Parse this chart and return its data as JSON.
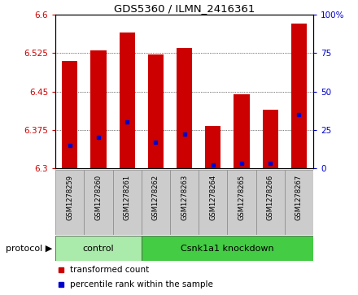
{
  "title": "GDS5360 / ILMN_2416361",
  "samples": [
    "GSM1278259",
    "GSM1278260",
    "GSM1278261",
    "GSM1278262",
    "GSM1278263",
    "GSM1278264",
    "GSM1278265",
    "GSM1278266",
    "GSM1278267"
  ],
  "transformed_counts": [
    6.51,
    6.53,
    6.565,
    6.522,
    6.535,
    6.382,
    6.445,
    6.415,
    6.583
  ],
  "percentile_ranks": [
    15,
    20,
    30,
    17,
    22,
    2,
    3,
    3,
    35
  ],
  "ylim": [
    6.3,
    6.6
  ],
  "yticks": [
    6.3,
    6.375,
    6.45,
    6.525,
    6.6
  ],
  "right_yticks": [
    0,
    25,
    50,
    75,
    100
  ],
  "bar_color": "#cc0000",
  "marker_color": "#0000cc",
  "bg_color": "#cccccc",
  "plot_bg": "#ffffff",
  "grid_color": "#000000",
  "protocol_groups": [
    {
      "label": "control",
      "start": 0,
      "end": 2,
      "color": "#aaeaaa"
    },
    {
      "label": "Csnk1a1 knockdown",
      "start": 3,
      "end": 8,
      "color": "#44cc44"
    }
  ],
  "legend_items": [
    {
      "label": "transformed count",
      "color": "#cc0000"
    },
    {
      "label": "percentile rank within the sample",
      "color": "#0000cc"
    }
  ],
  "protocol_label": "protocol",
  "left_tick_color": "#cc0000",
  "right_tick_color": "#0000cc",
  "spine_color": "#000000"
}
